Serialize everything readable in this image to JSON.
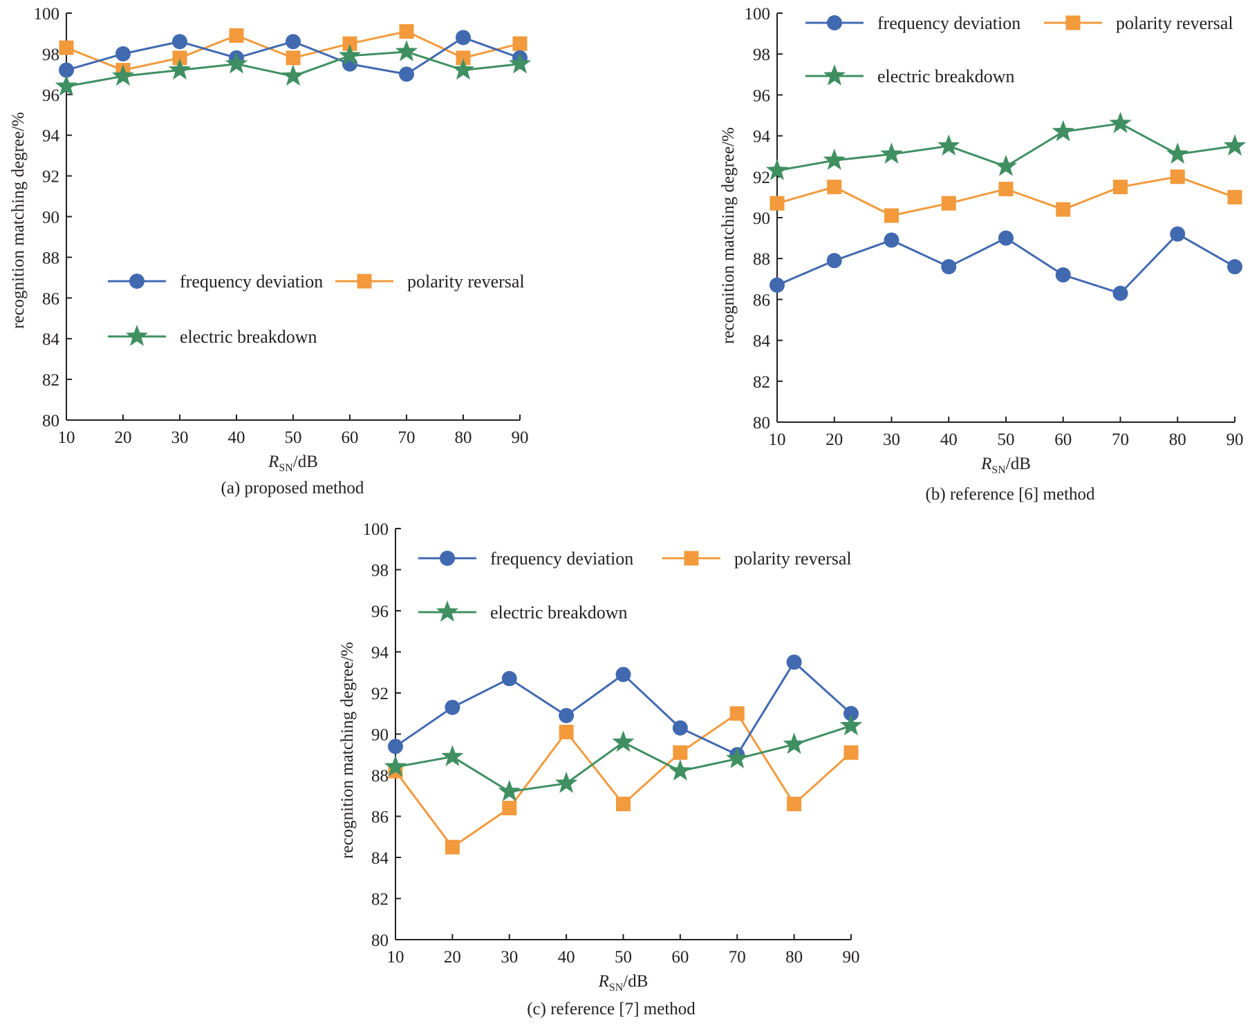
{
  "figure": {
    "colors": {
      "frequency_deviation": "#4169b0",
      "polarity_reversal": "#f29a3c",
      "electric_breakdown": "#3f8f61",
      "axis": "#231f20"
    },
    "legend": [
      {
        "key": "frequency_deviation",
        "label": "frequency deviation",
        "marker": "circle"
      },
      {
        "key": "polarity_reversal",
        "label": "polarity reversal",
        "marker": "square"
      },
      {
        "key": "electric_breakdown",
        "label": "electric breakdown",
        "marker": "star"
      }
    ]
  },
  "chart_data": [
    {
      "type": "line",
      "caption": "(a) proposed method",
      "xlabel_main": "R",
      "xlabel_sub": "SN",
      "xlabel_unit": "/dB",
      "ylabel": "recognition matching degree/%",
      "x": [
        10,
        20,
        30,
        40,
        50,
        60,
        70,
        80,
        90
      ],
      "xticks": [
        "10",
        "20",
        "30",
        "40",
        "50",
        "60",
        "70",
        "80",
        "90"
      ],
      "yticks": [
        "80",
        "82",
        "84",
        "86",
        "88",
        "90",
        "92",
        "94",
        "96",
        "98",
        "100"
      ],
      "xlim": [
        10,
        90
      ],
      "ylim": [
        80,
        100
      ],
      "legend_position": "center-left",
      "series": [
        {
          "name": "frequency deviation",
          "values": [
            97.2,
            98.0,
            98.6,
            97.8,
            98.6,
            97.5,
            97.0,
            98.8,
            97.8
          ]
        },
        {
          "name": "polarity reversal",
          "values": [
            98.3,
            97.2,
            97.8,
            98.9,
            97.8,
            98.5,
            99.1,
            97.8,
            98.5
          ]
        },
        {
          "name": "electric breakdown",
          "values": [
            96.4,
            96.9,
            97.2,
            97.5,
            96.9,
            97.9,
            98.1,
            97.2,
            97.5
          ]
        }
      ]
    },
    {
      "type": "line",
      "caption": "(b) reference [6] method",
      "xlabel_main": "R",
      "xlabel_sub": "SN",
      "xlabel_unit": "/dB",
      "ylabel": "recognition matching degree/%",
      "x": [
        10,
        20,
        30,
        40,
        50,
        60,
        70,
        80,
        90
      ],
      "xticks": [
        "10",
        "20",
        "30",
        "40",
        "50",
        "60",
        "70",
        "80",
        "90"
      ],
      "yticks": [
        "80",
        "82",
        "84",
        "86",
        "88",
        "90",
        "92",
        "94",
        "96",
        "98",
        "100"
      ],
      "xlim": [
        10,
        90
      ],
      "ylim": [
        80,
        100
      ],
      "legend_position": "top",
      "series": [
        {
          "name": "frequency deviation",
          "values": [
            86.7,
            87.9,
            88.9,
            87.6,
            89.0,
            87.2,
            86.3,
            89.2,
            87.6
          ]
        },
        {
          "name": "polarity reversal",
          "values": [
            90.7,
            91.5,
            90.1,
            90.7,
            91.4,
            90.4,
            91.5,
            92.0,
            91.0
          ]
        },
        {
          "name": "electric breakdown",
          "values": [
            92.3,
            92.8,
            93.1,
            93.5,
            92.5,
            94.2,
            94.6,
            93.1,
            93.5
          ]
        }
      ]
    },
    {
      "type": "line",
      "caption": "(c) reference [7] method",
      "xlabel_main": "R",
      "xlabel_sub": "SN",
      "xlabel_unit": "/dB",
      "ylabel": "recognition matching degree/%",
      "x": [
        10,
        20,
        30,
        40,
        50,
        60,
        70,
        80,
        90
      ],
      "xticks": [
        "10",
        "20",
        "30",
        "40",
        "50",
        "60",
        "70",
        "80",
        "90"
      ],
      "yticks": [
        "80",
        "82",
        "84",
        "86",
        "88",
        "90",
        "92",
        "94",
        "96",
        "98",
        "100"
      ],
      "xlim": [
        10,
        90
      ],
      "ylim": [
        80,
        100
      ],
      "legend_position": "top",
      "series": [
        {
          "name": "frequency deviation",
          "values": [
            89.4,
            91.3,
            92.7,
            90.9,
            92.9,
            90.3,
            89.0,
            93.5,
            91.0
          ]
        },
        {
          "name": "polarity reversal",
          "values": [
            88.2,
            84.5,
            86.4,
            90.1,
            86.6,
            89.1,
            91.0,
            86.6,
            89.1
          ]
        },
        {
          "name": "electric breakdown",
          "values": [
            88.4,
            88.9,
            87.2,
            87.6,
            89.6,
            88.2,
            88.8,
            89.5,
            90.4
          ]
        }
      ]
    }
  ]
}
